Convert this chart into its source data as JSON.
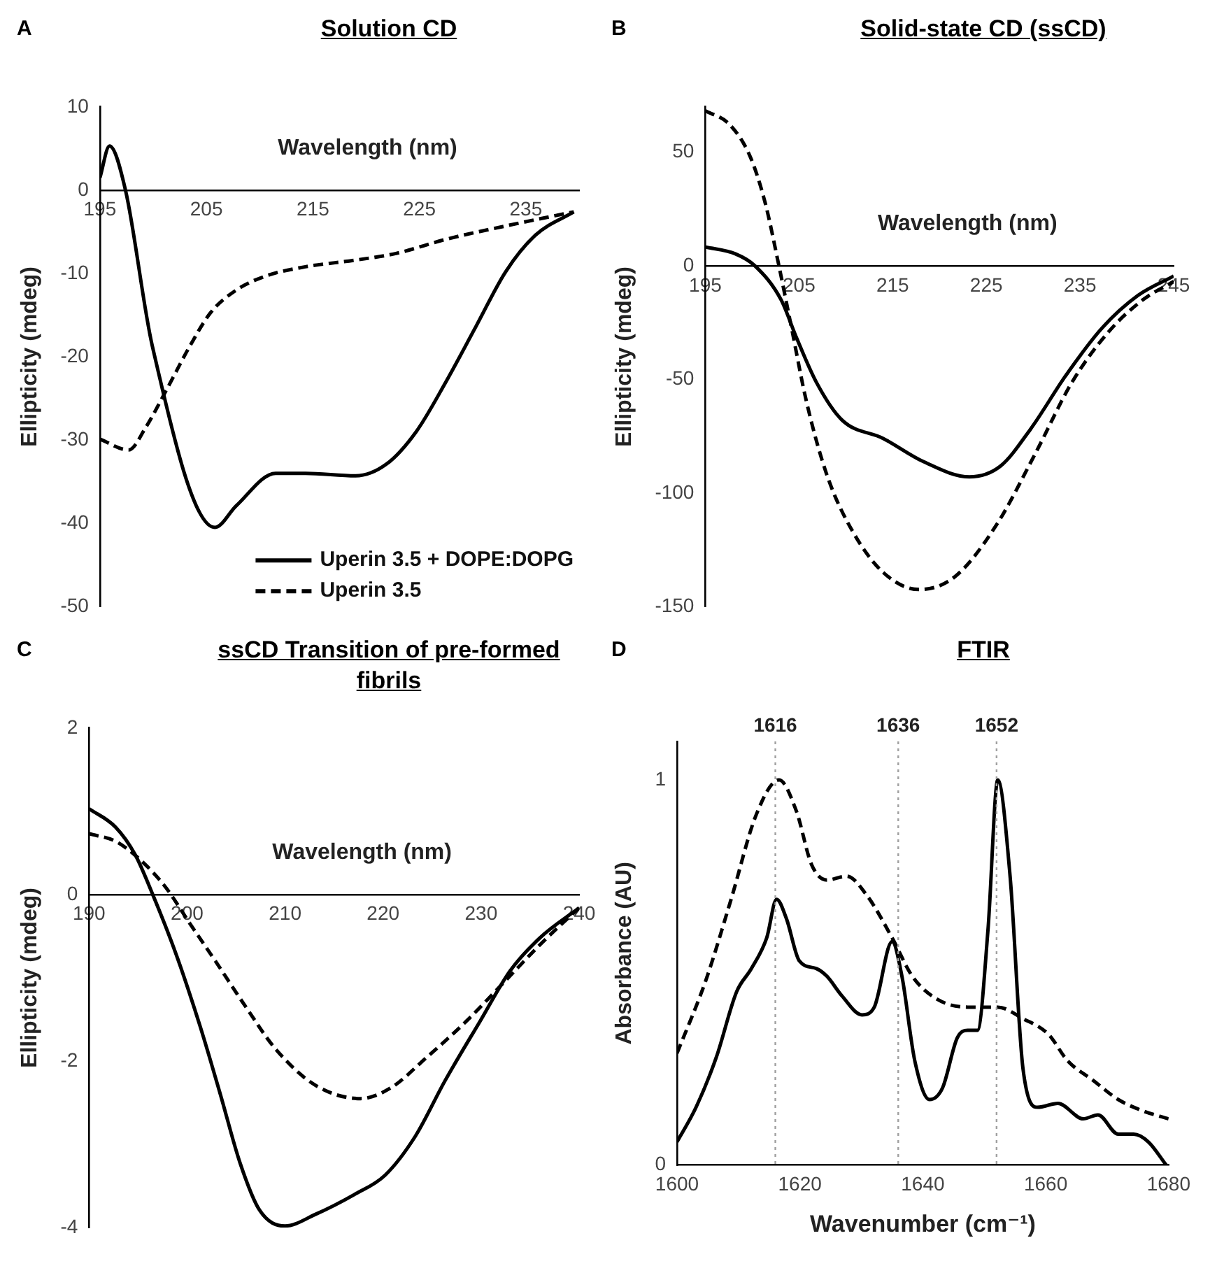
{
  "chart_data": [
    {
      "type": "line",
      "title": "Solution CD",
      "annotations": [
        "A"
      ],
      "xlabel": "Wavelength (nm)",
      "ylabel": "Ellipticity (mdeg)",
      "xlim": [
        195,
        240
      ],
      "xticks": [
        195,
        205,
        215,
        225,
        235
      ],
      "ylim": [
        -50,
        10
      ],
      "yticks": [
        -50,
        -40,
        -30,
        -20,
        -10,
        0,
        10
      ],
      "legend": "bottom right",
      "series": [
        {
          "name": "Uperin 3.5 + DOPE:DOPG",
          "color": "#000000",
          "line_style": "solid",
          "x": [
            195,
            195.9,
            197.4,
            199.9,
            205.8,
            207.8,
            211.5,
            214.3,
            219,
            221.9,
            224.7,
            227.5,
            230.3,
            233.1,
            235.9,
            239.5
          ],
          "values": [
            1.5,
            5.3,
            0,
            -18.6,
            -40.5,
            -37.9,
            -34,
            -34,
            -34.3,
            -32.9,
            -29,
            -23,
            -16.4,
            -9.8,
            -5.4,
            -2.6
          ]
        },
        {
          "name": "Uperin 3.5",
          "color": "#000000",
          "line_style": "dashed",
          "x": [
            195,
            197.7,
            199.3,
            201.2,
            203.5,
            205.4,
            207.8,
            210.6,
            214.3,
            219,
            222.8,
            227.5,
            233.1,
            239.5
          ],
          "values": [
            -29.9,
            -31.2,
            -28.5,
            -24.1,
            -18.6,
            -14.7,
            -12,
            -10.3,
            -9.2,
            -8.4,
            -7.6,
            -5.9,
            -4.3,
            -2.6
          ]
        }
      ]
    },
    {
      "type": "line",
      "title": "Solid-state CD (ssCD)",
      "annotations": [
        "B"
      ],
      "xlabel": "Wavelength (nm)",
      "ylabel": "Ellipticity (mdeg)",
      "xlim": [
        195,
        245
      ],
      "xticks": [
        195,
        205,
        215,
        225,
        235,
        245
      ],
      "ylim": [
        -150,
        70
      ],
      "yticks": [
        -150,
        -100,
        -50,
        0,
        50
      ],
      "series": [
        {
          "color": "#000000",
          "line_style": "solid",
          "x": [
            195,
            198.2,
            200.3,
            203.1,
            204.7,
            206.9,
            209.6,
            214,
            218.3,
            223.2,
            226.5,
            229.7,
            233.6,
            237.4,
            241.2,
            245
          ],
          "values": [
            8.3,
            5.3,
            0,
            -15,
            -31.3,
            -51.6,
            -67.9,
            -76,
            -86.2,
            -92.9,
            -88.2,
            -72,
            -47.6,
            -27.2,
            -13,
            -4.5
          ]
        },
        {
          "color": "#000000",
          "line_style": "dashed",
          "x": [
            195,
            197.6,
            199.8,
            201.4,
            202.8,
            204.2,
            205.8,
            208,
            210.7,
            214,
            217.8,
            221.6,
            226,
            230.3,
            234.1,
            238,
            241.7,
            245
          ],
          "values": [
            68.3,
            62.2,
            48,
            27.6,
            1.2,
            -27.2,
            -59.8,
            -92.3,
            -116.7,
            -135,
            -142.5,
            -137,
            -114.6,
            -82.1,
            -51.6,
            -29.3,
            -15,
            -6.9
          ]
        }
      ]
    },
    {
      "type": "line",
      "title": "ssCD Transition of pre-formed fibrils",
      "annotations": [
        "C"
      ],
      "xlabel": "Wavelength (nm)",
      "ylabel": "Ellipticity (mdeg)",
      "xlim": [
        190,
        240
      ],
      "xticks": [
        190,
        200,
        210,
        220,
        230,
        240
      ],
      "ylim": [
        -4,
        2
      ],
      "yticks": [
        -4,
        -2,
        0,
        2
      ],
      "series": [
        {
          "color": "#000000",
          "line_style": "solid",
          "x": [
            190,
            192.7,
            194.7,
            196.5,
            198.8,
            201.3,
            203.4,
            205.4,
            207.4,
            210,
            213.1,
            217.1,
            220.2,
            223.3,
            226.3,
            229.9,
            233,
            236,
            240
          ],
          "values": [
            1.03,
            0.81,
            0.48,
            0,
            -0.69,
            -1.57,
            -2.4,
            -3.22,
            -3.79,
            -3.98,
            -3.84,
            -3.6,
            -3.37,
            -2.9,
            -2.24,
            -1.52,
            -0.91,
            -0.52,
            -0.16
          ]
        },
        {
          "color": "#000000",
          "line_style": "dashed",
          "x": [
            190,
            192.7,
            195.2,
            197.8,
            200.3,
            202.9,
            206,
            209,
            213.1,
            217.7,
            220.8,
            224.4,
            228.5,
            232.6,
            236.2,
            240
          ],
          "values": [
            0.73,
            0.64,
            0.42,
            0.09,
            -0.35,
            -0.8,
            -1.35,
            -1.85,
            -2.29,
            -2.45,
            -2.32,
            -1.96,
            -1.52,
            -1.02,
            -0.58,
            -0.16
          ]
        }
      ]
    },
    {
      "type": "line",
      "title": "FTIR",
      "annotations": [
        "D"
      ],
      "xlabel": "Wavenumber (cm⁻¹)",
      "ylabel": "Absorbance (AU)",
      "xlim": [
        1600,
        1680
      ],
      "xticks": [
        1600,
        1620,
        1640,
        1660,
        1680
      ],
      "ylim": [
        0,
        1.1
      ],
      "yticks": [
        0,
        1
      ],
      "ref_lines": [
        {
          "axis": "x",
          "value": 1616,
          "label": "1616",
          "color": "#a0a0a0",
          "line_style": "dotted"
        },
        {
          "axis": "x",
          "value": 1636,
          "label": "1636",
          "color": "#a0a0a0",
          "line_style": "dotted"
        },
        {
          "axis": "x",
          "value": 1652,
          "label": "1652",
          "color": "#a0a0a0",
          "line_style": "dotted"
        }
      ],
      "series": [
        {
          "color": "#000000",
          "line_style": "solid",
          "x": [
            1600,
            1603.1,
            1606.4,
            1609.7,
            1612.1,
            1614.6,
            1616.2,
            1617.8,
            1619.9,
            1622.7,
            1624.4,
            1626.8,
            1630.1,
            1632.1,
            1635,
            1636.6,
            1638.7,
            1641.1,
            1643.2,
            1645.6,
            1647.3,
            1648.9,
            1650.6,
            1652.2,
            1654.2,
            1656.3,
            1658.7,
            1662,
            1666.1,
            1668.5,
            1671.8,
            1674.3,
            1676.7,
            1679.6
          ],
          "values": [
            0.06,
            0.15,
            0.28,
            0.45,
            0.51,
            0.59,
            0.69,
            0.64,
            0.53,
            0.51,
            0.49,
            0.44,
            0.39,
            0.41,
            0.58,
            0.49,
            0.27,
            0.17,
            0.2,
            0.33,
            0.35,
            0.35,
            0.61,
            1.0,
            0.75,
            0.25,
            0.15,
            0.16,
            0.12,
            0.13,
            0.08,
            0.08,
            0.06,
            0
          ]
        },
        {
          "color": "#000000",
          "line_style": "dashed",
          "x": [
            1600,
            1604.7,
            1608.8,
            1612.9,
            1616.6,
            1619.4,
            1621.9,
            1624.4,
            1627.6,
            1630.9,
            1635,
            1638.3,
            1642.4,
            1647.3,
            1652.2,
            1656.3,
            1660.4,
            1663.6,
            1667.7,
            1671.8,
            1675.9,
            1680
          ],
          "values": [
            0.29,
            0.48,
            0.69,
            0.91,
            1.0,
            0.92,
            0.78,
            0.74,
            0.75,
            0.7,
            0.59,
            0.49,
            0.43,
            0.41,
            0.41,
            0.38,
            0.34,
            0.27,
            0.22,
            0.17,
            0.14,
            0.12
          ]
        }
      ]
    }
  ]
}
